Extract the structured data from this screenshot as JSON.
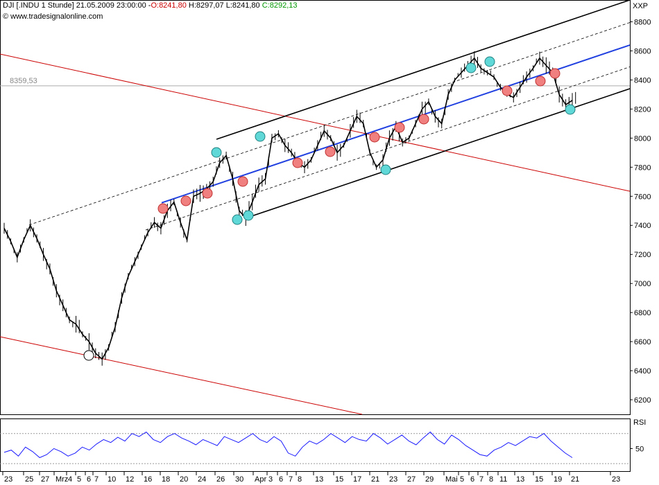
{
  "header": {
    "symbol": "DJI [.INDU",
    "interval": "1 Stunde]",
    "datetime": "21.05.2009 23:00:00",
    "open_label": "O:8241,80",
    "high_label": "H:8297,07",
    "low_label": "L:8241,80",
    "close_label": "C:8292,13",
    "website": "www.tradesignalonline.com",
    "y_unit": "XXP",
    "reference_value": "8359,53"
  },
  "colors": {
    "candles": "#000000",
    "regression": "#2040e0",
    "trend_red": "#cc0000",
    "marker_red": "#f08080",
    "marker_cyan": "#60d8d8",
    "rsi": "#1a1aff",
    "grid": "#cccccc"
  },
  "chart_data": [
    {
      "type": "line",
      "subtype": "candlestick",
      "title": "DJI [.INDU 1 Stunde]",
      "ylabel": "XXP",
      "ylim": [
        6100,
        8950
      ],
      "y_ticks": [
        "6200",
        "6400",
        "6600",
        "6800",
        "7000",
        "7200",
        "7400",
        "7600",
        "7800",
        "8000",
        "8200",
        "8400",
        "8600",
        "8800"
      ],
      "x_tick_labels": [
        "23",
        "25",
        "27",
        "Mrz",
        "4",
        "5",
        "6",
        "7",
        "10",
        "12",
        "16",
        "18",
        "20",
        "24",
        "26",
        "30",
        "Apr",
        "3",
        "6",
        "7",
        "8",
        "13",
        "15",
        "17",
        "21",
        "23",
        "27",
        "29",
        "Mai",
        "5",
        "6",
        "7",
        "8",
        "11",
        "13",
        "15",
        "19",
        "21",
        "23"
      ],
      "reference_line": 8359.53,
      "series": [
        {
          "values": [
            7380,
            7290,
            7180,
            7300,
            7400,
            7310,
            7200,
            7100,
            6950,
            6850,
            6750,
            6720,
            6650,
            6600,
            6520,
            6480,
            6560,
            6700,
            6900,
            7050,
            7150,
            7250,
            7350,
            7420,
            7380,
            7500,
            7560,
            7420,
            7300,
            7600,
            7620,
            7650,
            7700,
            7830,
            7880,
            7720,
            7500,
            7450,
            7560,
            7680,
            7720,
            8000,
            8030,
            7950,
            7900,
            7830,
            7800,
            7850,
            7950,
            8050,
            8000,
            7900,
            7950,
            8050,
            8150,
            8100,
            7900,
            7800,
            7850,
            8000,
            8080,
            7970,
            8000,
            8100,
            8200,
            8250,
            8150,
            8100,
            8300,
            8400,
            8450,
            8500,
            8550,
            8480,
            8450,
            8420,
            8350,
            8300,
            8280,
            8350,
            8420,
            8480,
            8550,
            8500,
            8450,
            8300,
            8230,
            8260
          ]
        }
      ],
      "channel": {
        "upper": "parallel",
        "lower": "parallel",
        "regression": "mid"
      },
      "trend_lines": {
        "color": "red",
        "direction": "down"
      }
    },
    {
      "type": "line",
      "title": "RSI",
      "ylabel": "RSI",
      "y_ticks": [
        "50"
      ],
      "series": [
        {
          "name": "RSI",
          "values": [
            45,
            48,
            40,
            52,
            46,
            38,
            42,
            50,
            46,
            40,
            44,
            52,
            48,
            56,
            62,
            58,
            65,
            60,
            70,
            66,
            72,
            62,
            58,
            66,
            70,
            64,
            60,
            55,
            62,
            58,
            54,
            66,
            62,
            58,
            64,
            70,
            62,
            58,
            66,
            60,
            44,
            40,
            52,
            60,
            56,
            62,
            70,
            64,
            58,
            66,
            62,
            60,
            70,
            64,
            56,
            62,
            68,
            60,
            55,
            64,
            72,
            62,
            56,
            68,
            62,
            54,
            48,
            42,
            40,
            48,
            52,
            58,
            54,
            60,
            66,
            64,
            70,
            60,
            52,
            44,
            38
          ]
        }
      ],
      "overbought": 70,
      "oversold": 30
    }
  ]
}
